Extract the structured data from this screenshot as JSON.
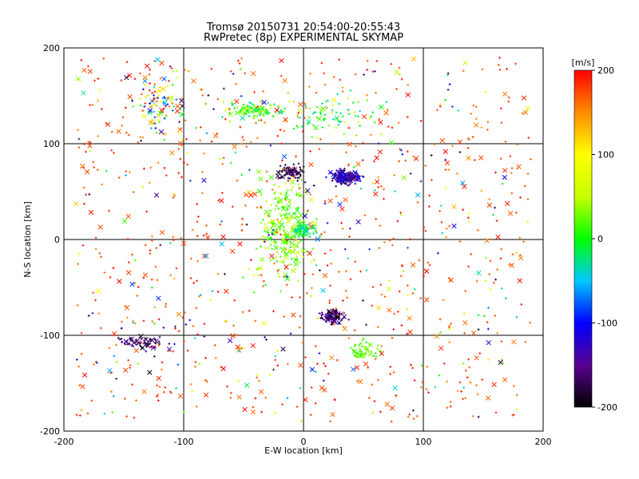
{
  "chart_data": {
    "type": "scatter",
    "title": "Tromsø 20150731 20:54:00-20:55:43",
    "subtitle": "RwPretec (8p) EXPERIMENTAL SKYMAP",
    "xlabel": "E-W location [km]",
    "ylabel": "N-S location [km]",
    "xlim": [
      -200,
      200
    ],
    "ylim": [
      -200,
      200
    ],
    "xticks": [
      "-200",
      "-100",
      "0",
      "100",
      "200"
    ],
    "yticks": [
      "-200",
      "-100",
      "0",
      "100",
      "200"
    ],
    "grid": true,
    "marker_types": [
      "+",
      "x"
    ],
    "colorbar": {
      "label": "[m/s]",
      "range": [
        -200,
        200
      ],
      "ticks": [
        "-200",
        "-100",
        "0",
        "100",
        "200"
      ],
      "colormap": [
        "#000000",
        "#5a0090",
        "#0000ff",
        "#00c8ff",
        "#00ff00",
        "#c8ff00",
        "#ffff00",
        "#ff8c00",
        "#ff0000"
      ]
    },
    "clusters": [
      {
        "x": 35,
        "y": 65,
        "rx": 22,
        "ry": 12,
        "n": 160,
        "vmin": -180,
        "vmax": -90
      },
      {
        "x": -10,
        "y": 70,
        "rx": 20,
        "ry": 15,
        "n": 70,
        "vmin": -200,
        "vmax": -150
      },
      {
        "x": 25,
        "y": -80,
        "rx": 18,
        "ry": 12,
        "n": 100,
        "vmin": -200,
        "vmax": -120
      },
      {
        "x": -15,
        "y": 10,
        "rx": 40,
        "ry": 90,
        "n": 260,
        "vmin": 0,
        "vmax": 60
      },
      {
        "x": 0,
        "y": 10,
        "rx": 15,
        "ry": 10,
        "n": 60,
        "vmin": -50,
        "vmax": 10
      },
      {
        "x": -40,
        "y": 135,
        "rx": 40,
        "ry": 15,
        "n": 110,
        "vmin": -40,
        "vmax": 60
      },
      {
        "x": -135,
        "y": -108,
        "rx": 30,
        "ry": 12,
        "n": 60,
        "vmin": -200,
        "vmax": -130
      },
      {
        "x": -120,
        "y": 145,
        "rx": 30,
        "ry": 50,
        "n": 80,
        "vmin": -150,
        "vmax": 200
      },
      {
        "x": 50,
        "y": -115,
        "rx": 25,
        "ry": 15,
        "n": 50,
        "vmin": 0,
        "vmax": 40
      },
      {
        "x": 20,
        "y": 130,
        "rx": 80,
        "ry": 40,
        "n": 80,
        "vmin": -50,
        "vmax": 80
      },
      {
        "x": 0,
        "y": 0,
        "rx": 190,
        "ry": 190,
        "n": 700,
        "vmin": 150,
        "vmax": 200
      },
      {
        "x": 0,
        "y": 0,
        "rx": 190,
        "ry": 190,
        "n": 300,
        "vmin": -200,
        "vmax": 200
      }
    ]
  }
}
